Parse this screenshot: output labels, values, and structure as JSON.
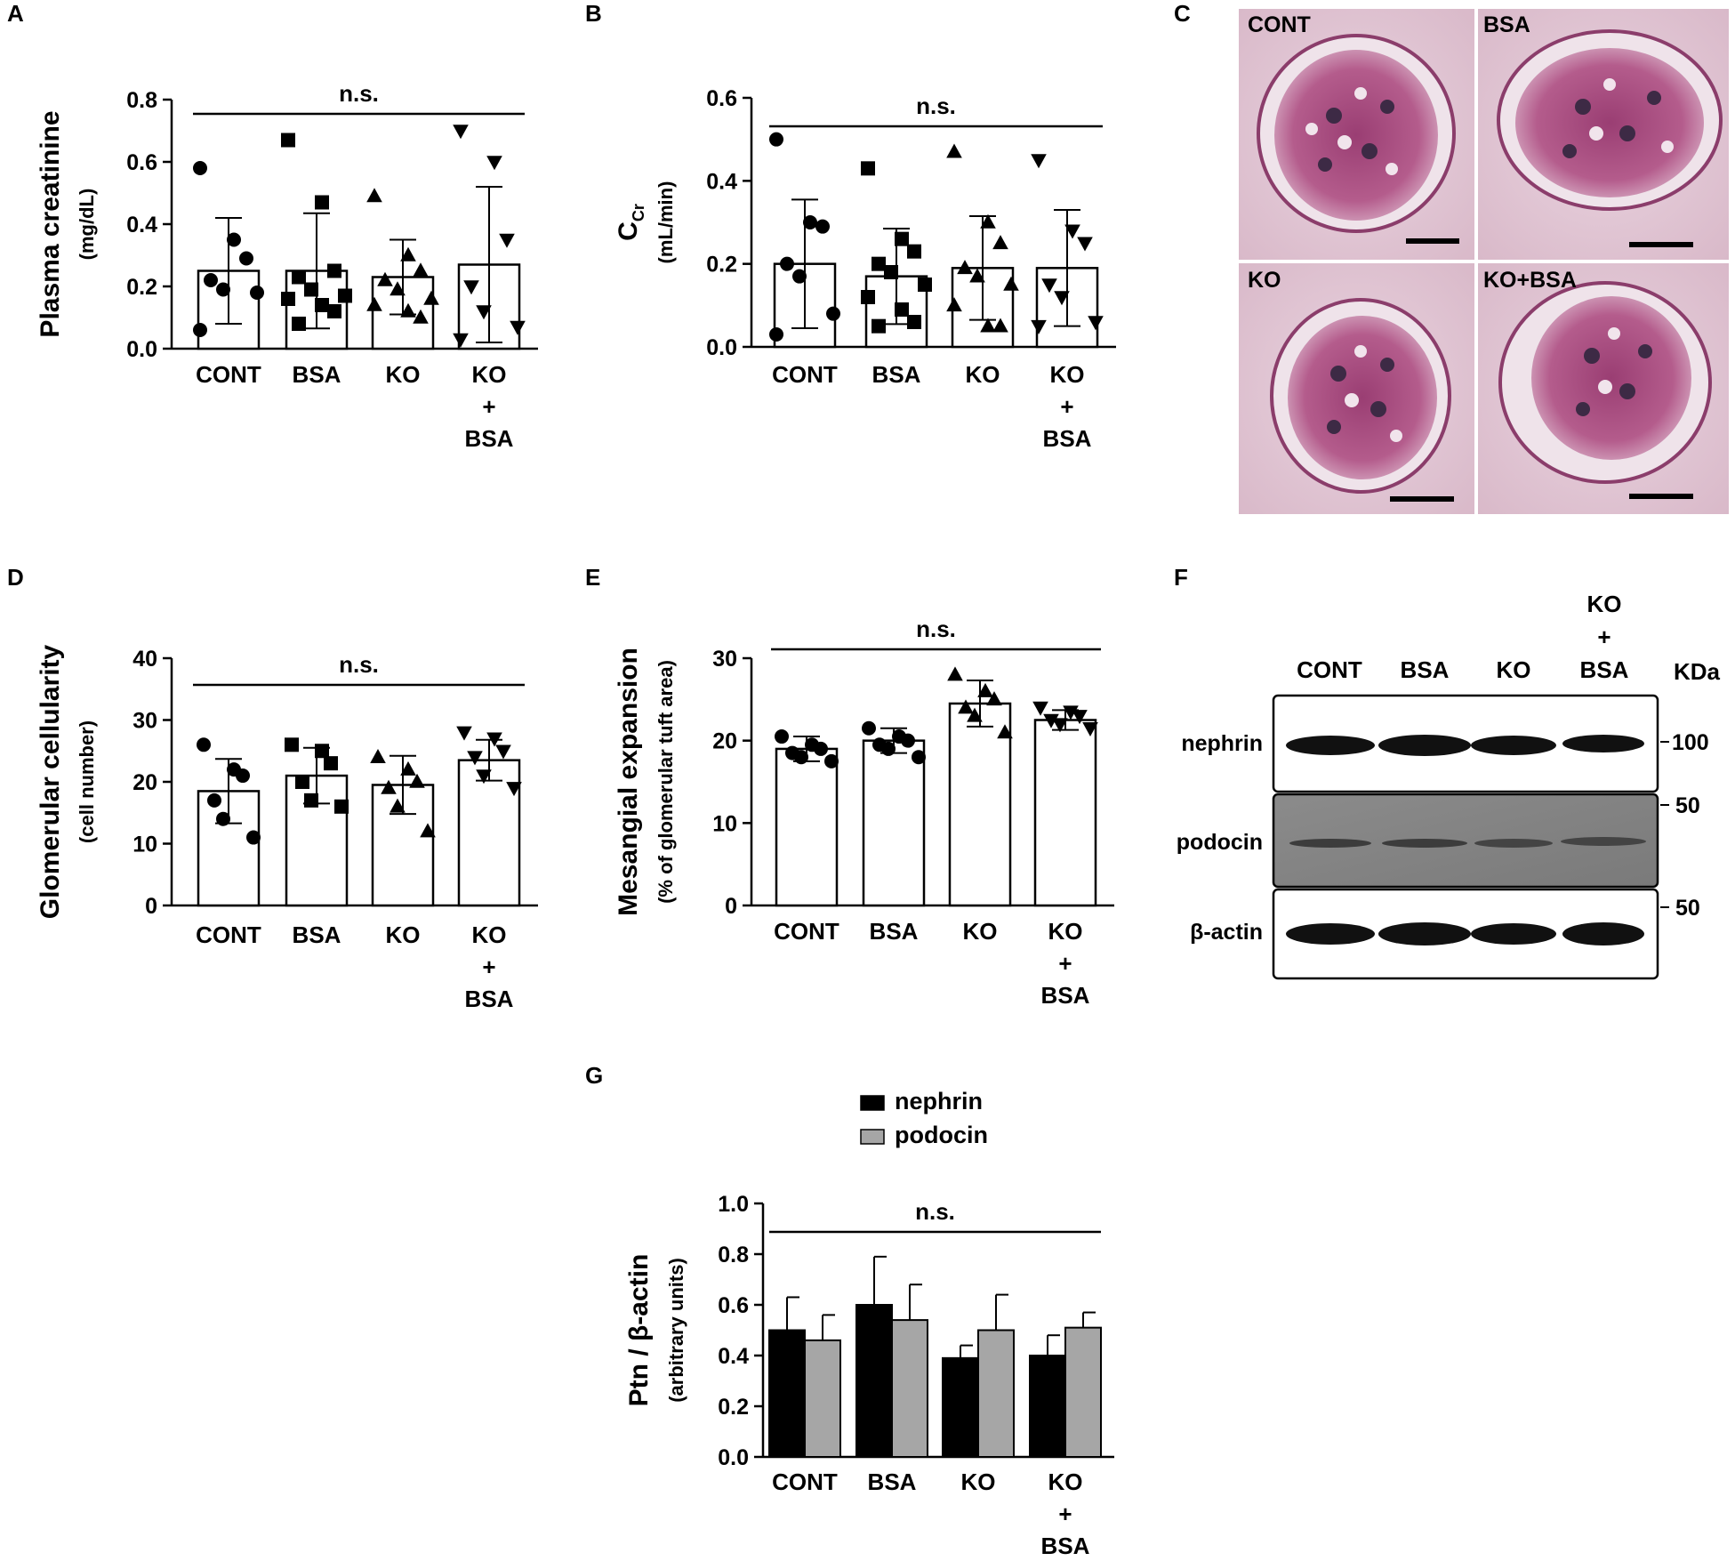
{
  "panel_letters": {
    "A": "A",
    "B": "B",
    "C": "C",
    "D": "D",
    "E": "E",
    "F": "F",
    "G": "G"
  },
  "groups": [
    "CONT",
    "BSA",
    "KO",
    "KO+BSA"
  ],
  "colors": {
    "bar_fill": "#ffffff",
    "bar_stroke": "#000000",
    "nephrin_bar": "#000000",
    "podocin_bar": "#a6a6a6"
  },
  "chart_data": [
    {
      "panel": "A",
      "type": "bar",
      "categories": [
        "CONT",
        "BSA",
        "KO",
        "KO+BSA"
      ],
      "ylabel": "Plasma creatinine",
      "ylabel_unit": "(mg/dL)",
      "ylim": [
        0,
        0.8
      ],
      "yticks": [
        0.0,
        0.2,
        0.4,
        0.6,
        0.8
      ],
      "ytick_labels": [
        "0.0",
        "0.2",
        "0.4",
        "0.6",
        "0.8"
      ],
      "significance": "n.s.",
      "values": [
        0.25,
        0.25,
        0.23,
        0.27
      ],
      "errors": [
        0.17,
        0.185,
        0.12,
        0.25
      ],
      "markers": [
        "circle",
        "square",
        "triangle",
        "triangle-down"
      ],
      "points": [
        [
          0.58,
          0.35,
          0.29,
          0.22,
          0.19,
          0.18,
          0.06
        ],
        [
          0.67,
          0.47,
          0.25,
          0.23,
          0.19,
          0.17,
          0.16,
          0.14,
          0.12,
          0.08
        ],
        [
          0.49,
          0.3,
          0.25,
          0.22,
          0.19,
          0.16,
          0.14,
          0.12,
          0.1
        ],
        [
          0.7,
          0.6,
          0.35,
          0.2,
          0.12,
          0.07,
          0.03
        ]
      ]
    },
    {
      "panel": "B",
      "type": "bar",
      "categories": [
        "CONT",
        "BSA",
        "KO",
        "KO+BSA"
      ],
      "ylabel": "C",
      "ylabel_sub": "Cr",
      "ylabel_unit": "(mL/min)",
      "ylim": [
        0,
        0.6
      ],
      "yticks": [
        0.0,
        0.2,
        0.4,
        0.6
      ],
      "ytick_labels": [
        "0.0",
        "0.2",
        "0.4",
        "0.6"
      ],
      "significance": "n.s.",
      "values": [
        0.2,
        0.17,
        0.19,
        0.19
      ],
      "errors": [
        0.155,
        0.115,
        0.125,
        0.14
      ],
      "markers": [
        "circle",
        "square",
        "triangle",
        "triangle-down"
      ],
      "points": [
        [
          0.5,
          0.3,
          0.29,
          0.2,
          0.17,
          0.08,
          0.03
        ],
        [
          0.43,
          0.26,
          0.23,
          0.2,
          0.18,
          0.15,
          0.12,
          0.09,
          0.06,
          0.05
        ],
        [
          0.47,
          0.3,
          0.25,
          0.19,
          0.17,
          0.15,
          0.1,
          0.05,
          0.05
        ],
        [
          0.45,
          0.28,
          0.25,
          0.15,
          0.12,
          0.06,
          0.05
        ]
      ]
    },
    {
      "panel": "D",
      "type": "bar",
      "categories": [
        "CONT",
        "BSA",
        "KO",
        "KO+BSA"
      ],
      "ylabel": "Glomerular cellularity",
      "ylabel_unit": "(cell number)",
      "ylim": [
        0,
        40
      ],
      "yticks": [
        0,
        10,
        20,
        30,
        40
      ],
      "ytick_labels": [
        "0",
        "10",
        "20",
        "30",
        "40"
      ],
      "significance": "n.s.",
      "values": [
        18.5,
        21,
        19.5,
        23.5
      ],
      "errors": [
        5.2,
        4.5,
        4.7,
        3.3
      ],
      "markers": [
        "circle",
        "square",
        "triangle",
        "triangle-down"
      ],
      "points": [
        [
          26,
          22,
          21,
          17,
          14,
          11
        ],
        [
          26,
          25,
          23,
          20,
          17,
          16
        ],
        [
          24,
          22,
          20,
          19,
          16,
          12
        ],
        [
          28,
          27,
          25,
          24,
          21,
          19
        ]
      ]
    },
    {
      "panel": "E",
      "type": "bar",
      "categories": [
        "CONT",
        "BSA",
        "KO",
        "KO+BSA"
      ],
      "ylabel": "Mesangial expansion",
      "ylabel_unit": "(% of glomerular tuft area)",
      "ylim": [
        0,
        30
      ],
      "yticks": [
        0,
        10,
        20,
        30
      ],
      "ytick_labels": [
        "0",
        "10",
        "20",
        "30"
      ],
      "significance": "n.s.",
      "values": [
        19,
        20,
        24.5,
        22.5
      ],
      "errors": [
        1.5,
        1.5,
        2.8,
        1.2
      ],
      "markers": [
        "circle",
        "circle",
        "triangle",
        "triangle-down"
      ],
      "points": [
        [
          20.5,
          19.5,
          19,
          18.5,
          18,
          17.5
        ],
        [
          21.5,
          20.5,
          20,
          19.5,
          19,
          18
        ],
        [
          28,
          26,
          25,
          24,
          23,
          21
        ],
        [
          24,
          23.5,
          23,
          22.5,
          22,
          21.5
        ]
      ]
    },
    {
      "panel": "G",
      "type": "bar",
      "categories": [
        "CONT",
        "BSA",
        "KO",
        "KO+BSA"
      ],
      "ylabel": "Ptn / β-actin",
      "ylabel_unit": "(arbitrary units)",
      "ylim": [
        0,
        1.0
      ],
      "yticks": [
        0.0,
        0.2,
        0.4,
        0.6,
        0.8,
        1.0
      ],
      "ytick_labels": [
        "0.0",
        "0.2",
        "0.4",
        "0.6",
        "0.8",
        "1.0"
      ],
      "significance": "n.s.",
      "legend": [
        "nephrin",
        "podocin"
      ],
      "series": [
        {
          "name": "nephrin",
          "values": [
            0.5,
            0.6,
            0.39,
            0.4
          ],
          "errors": [
            0.13,
            0.19,
            0.05,
            0.08
          ]
        },
        {
          "name": "podocin",
          "values": [
            0.46,
            0.54,
            0.5,
            0.51
          ],
          "errors": [
            0.1,
            0.14,
            0.14,
            0.06
          ]
        }
      ]
    }
  ],
  "micrographs": {
    "labels": [
      "CONT",
      "BSA",
      "KO",
      "KO+BSA"
    ]
  },
  "western_blot": {
    "lane_labels": [
      "CONT",
      "BSA",
      "KO",
      "KO"
    ],
    "lane_label_extra": [
      "+",
      "BSA"
    ],
    "unit": "KDa",
    "rows": [
      {
        "name": "nephrin",
        "markers": [
          "100"
        ]
      },
      {
        "name": "podocin",
        "markers": [
          "50"
        ]
      },
      {
        "name": "β-actin",
        "markers": [
          "50"
        ]
      }
    ]
  }
}
